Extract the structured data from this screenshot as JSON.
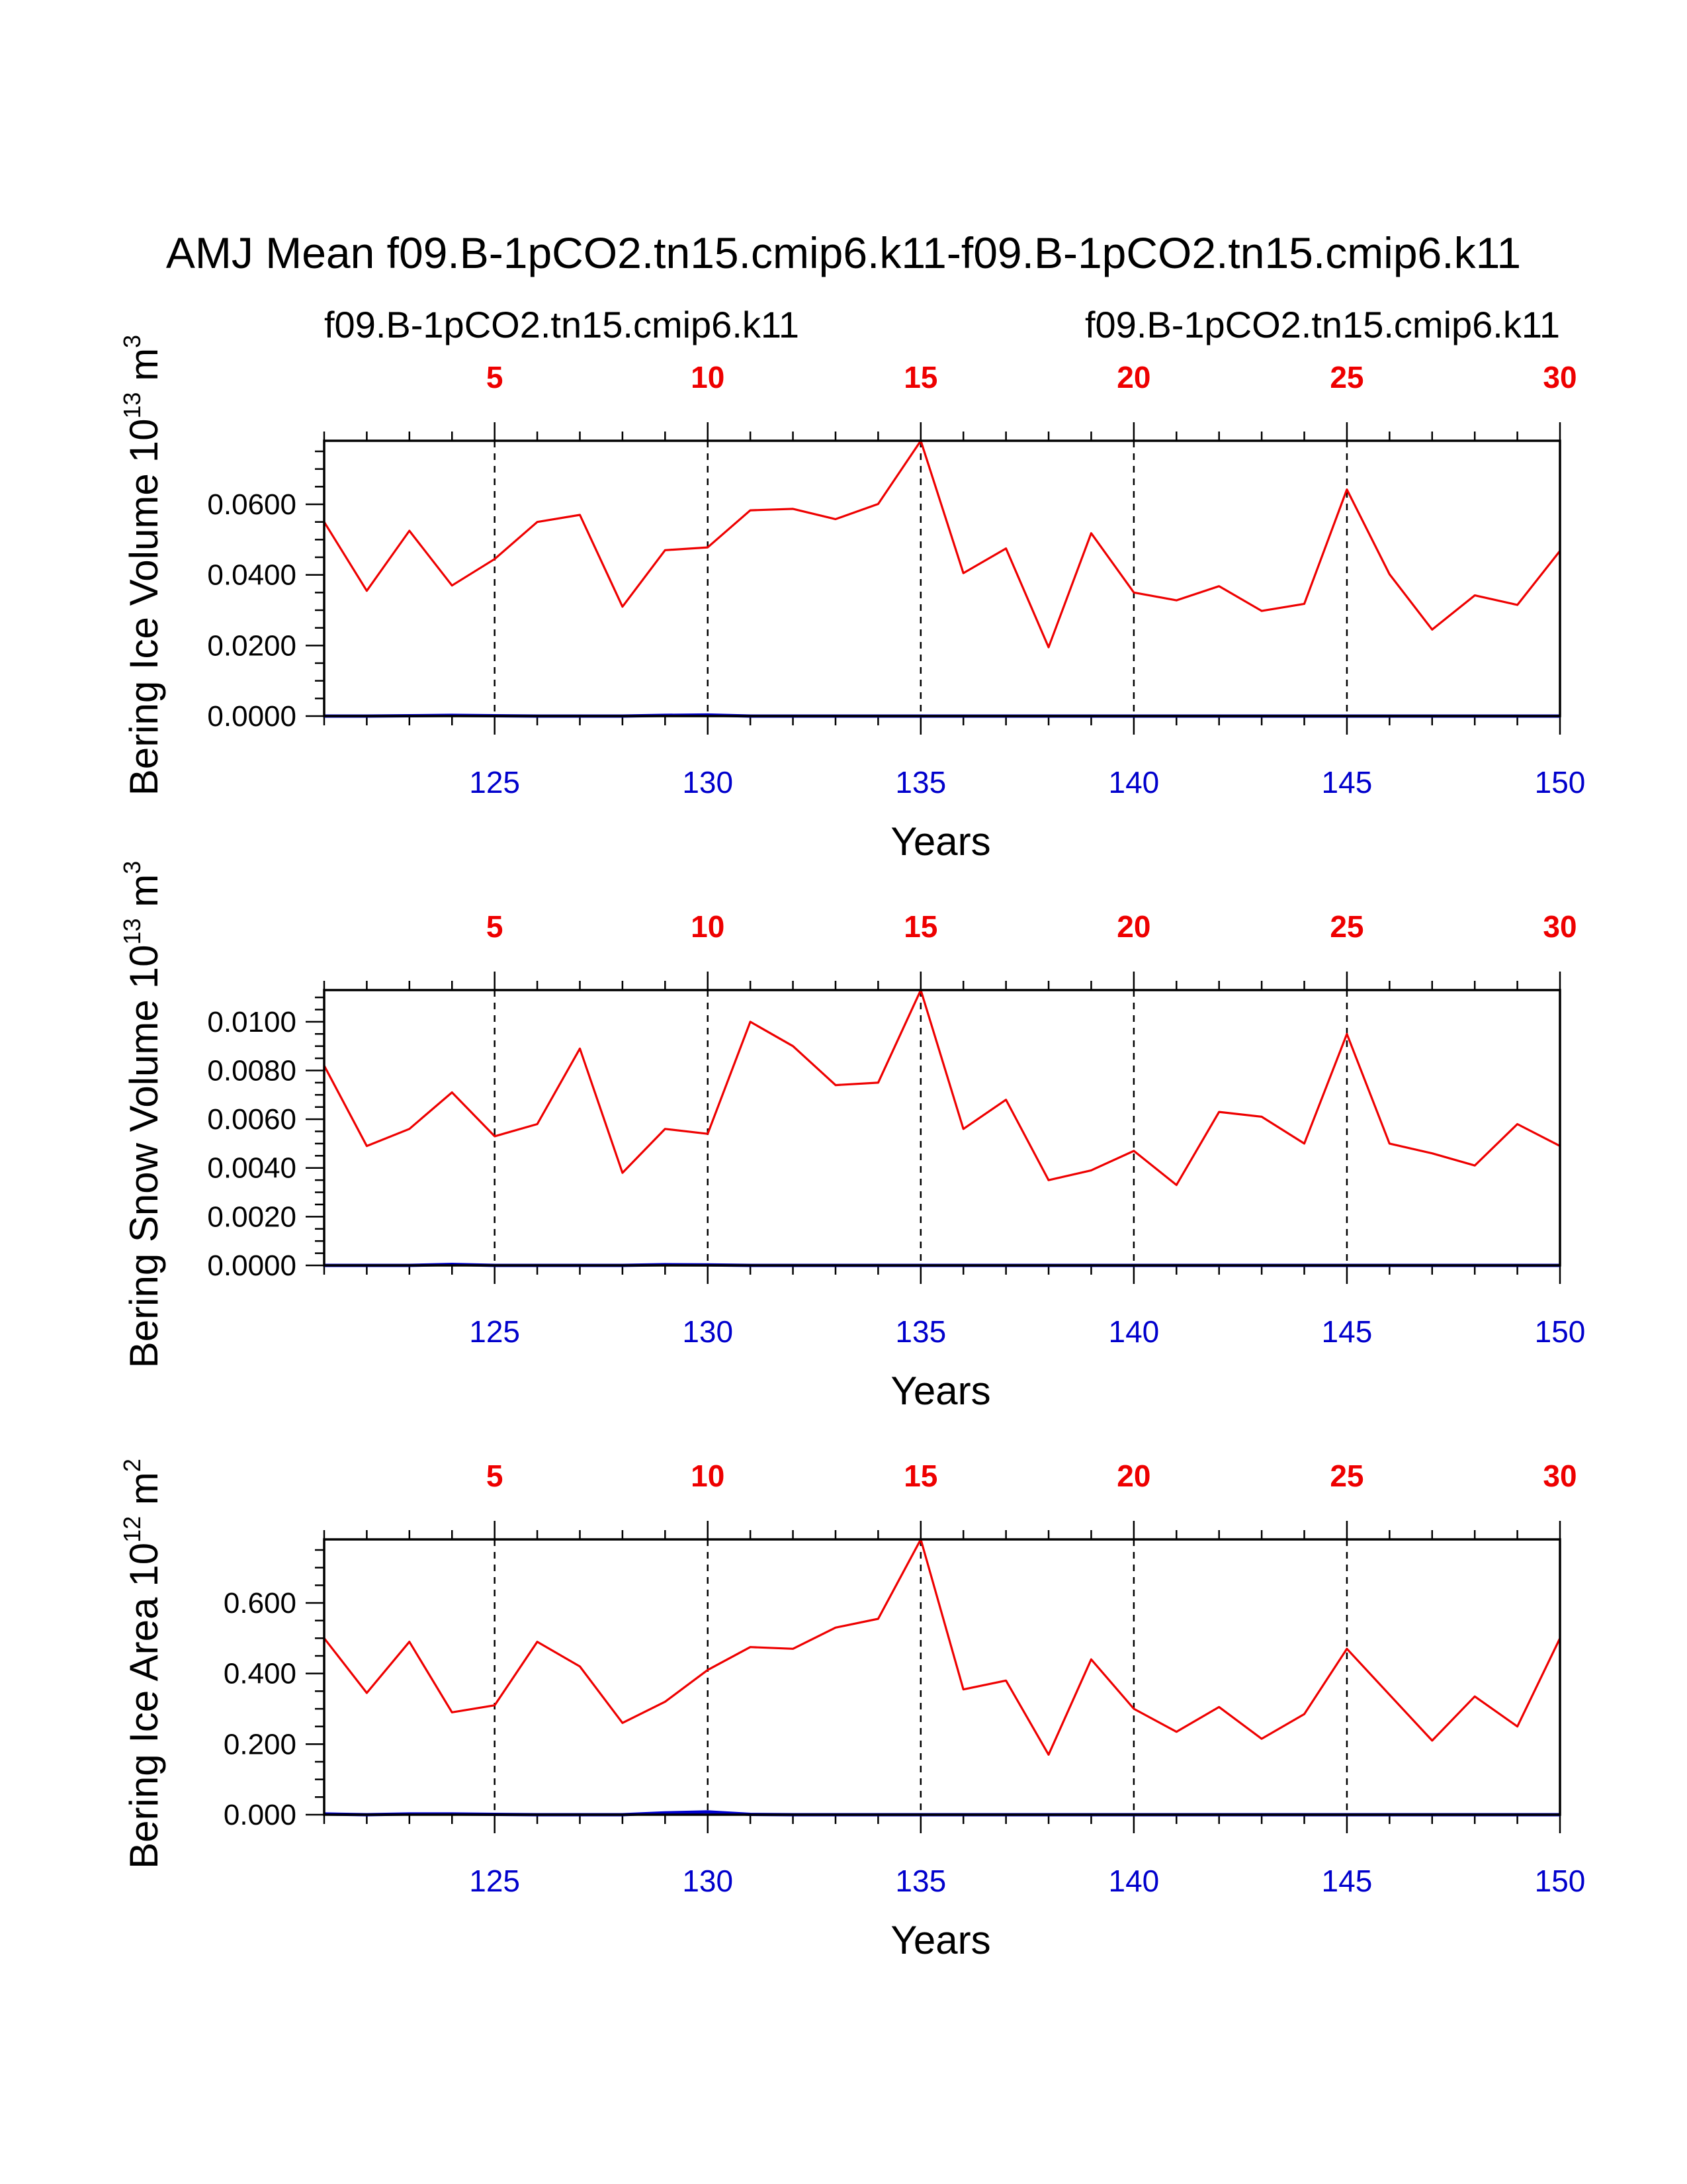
{
  "page_title": "AMJ Mean f09.B-1pCO2.tn15.cmip6.k11-f09.B-1pCO2.tn15.cmip6.k11",
  "legend": {
    "left_case": "f09.B-1pCO2.tn15.cmip6.k11",
    "right_case": "f09.B-1pCO2.tn15.cmip6.k11"
  },
  "colors": {
    "case1": "#ee0000",
    "case2": "#0000cc",
    "axis": "#000000"
  },
  "chart_data": [
    {
      "type": "line",
      "ylabel": "Bering Ice Volume",
      "ylabel_unit": "10",
      "ylabel_unit_exp": "13",
      "ylabel_unit_tail": " m",
      "ylabel_unit_tail_exp": "3",
      "xlabel": "Years",
      "ylim": [
        0,
        0.078
      ],
      "yticks": [
        0.0,
        0.02,
        0.04,
        0.06
      ],
      "ytick_labels": [
        "0.0000",
        "0.0200",
        "0.0400",
        "0.0600"
      ],
      "yminor_step": 0.005,
      "series": [
        {
          "name": "f09.B-1pCO2.tn15.cmip6.k11",
          "color": "#ee0000",
          "x": [
            121,
            122,
            123,
            124,
            125,
            126,
            127,
            128,
            129,
            130,
            131,
            132,
            133,
            134,
            135,
            136,
            137,
            138,
            139,
            140,
            141,
            142,
            143,
            144,
            145,
            146,
            147,
            148,
            149,
            150
          ],
          "values": [
            0.055,
            0.0355,
            0.0525,
            0.037,
            0.0445,
            0.055,
            0.057,
            0.031,
            0.047,
            0.0478,
            0.0583,
            0.0587,
            0.0558,
            0.0601,
            0.078,
            0.0405,
            0.0475,
            0.0195,
            0.0518,
            0.035,
            0.0328,
            0.0368,
            0.0298,
            0.0318,
            0.0642,
            0.0402,
            0.0245,
            0.0342,
            0.0315,
            0.0468
          ]
        },
        {
          "name": "f09.B-1pCO2.tn15.cmip6.k11",
          "color": "#0000cc",
          "x": [
            121,
            122,
            123,
            124,
            125,
            126,
            127,
            128,
            129,
            130,
            131,
            132,
            133,
            134,
            135,
            136,
            137,
            138,
            139,
            140,
            141,
            142,
            143,
            144,
            145,
            146,
            147,
            148,
            149,
            150
          ],
          "values": [
            0.0,
            0.0,
            0.0001,
            0.0002,
            0.0001,
            0.0,
            0.0,
            0.0,
            0.0002,
            0.0003,
            0.0,
            0.0,
            0.0,
            0.0,
            0.0,
            0.0,
            0.0,
            0.0,
            0.0,
            0.0,
            0.0,
            0.0,
            0.0,
            0.0,
            0.0,
            0.0,
            0.0,
            0.0,
            0.0,
            0.0
          ]
        }
      ]
    },
    {
      "type": "line",
      "ylabel": "Bering Snow Volume",
      "ylabel_unit": "10",
      "ylabel_unit_exp": "13",
      "ylabel_unit_tail": " m",
      "ylabel_unit_tail_exp": "3",
      "xlabel": "Years",
      "ylim": [
        0,
        0.0113
      ],
      "yticks": [
        0.0,
        0.002,
        0.004,
        0.006,
        0.008,
        0.01
      ],
      "ytick_labels": [
        "0.0000",
        "0.0020",
        "0.0040",
        "0.0060",
        "0.0080",
        "0.0100"
      ],
      "yminor_step": 0.0005,
      "series": [
        {
          "name": "f09.B-1pCO2.tn15.cmip6.k11",
          "color": "#ee0000",
          "x": [
            121,
            122,
            123,
            124,
            125,
            126,
            127,
            128,
            129,
            130,
            131,
            132,
            133,
            134,
            135,
            136,
            137,
            138,
            139,
            140,
            141,
            142,
            143,
            144,
            145,
            146,
            147,
            148,
            149,
            150
          ],
          "values": [
            0.0082,
            0.0049,
            0.0056,
            0.0071,
            0.0053,
            0.0058,
            0.0089,
            0.0038,
            0.0056,
            0.0054,
            0.01,
            0.009,
            0.0074,
            0.0075,
            0.0113,
            0.0056,
            0.0068,
            0.0035,
            0.0039,
            0.0047,
            0.0033,
            0.0063,
            0.0061,
            0.005,
            0.0095,
            0.005,
            0.0046,
            0.0041,
            0.0058,
            0.0049
          ]
        },
        {
          "name": "f09.B-1pCO2.tn15.cmip6.k11",
          "color": "#0000cc",
          "x": [
            121,
            122,
            123,
            124,
            125,
            126,
            127,
            128,
            129,
            130,
            131,
            132,
            133,
            134,
            135,
            136,
            137,
            138,
            139,
            140,
            141,
            142,
            143,
            144,
            145,
            146,
            147,
            148,
            149,
            150
          ],
          "values": [
            0.0,
            0.0,
            0.0,
            4e-05,
            0.0,
            0.0,
            0.0,
            0.0,
            3e-05,
            2e-05,
            0.0,
            0.0,
            0.0,
            0.0,
            0.0,
            0.0,
            0.0,
            0.0,
            0.0,
            0.0,
            0.0,
            0.0,
            0.0,
            0.0,
            0.0,
            0.0,
            0.0,
            0.0,
            0.0,
            0.0
          ]
        }
      ]
    },
    {
      "type": "line",
      "ylabel": "Bering Ice Area",
      "ylabel_unit": "10",
      "ylabel_unit_exp": "12",
      "ylabel_unit_tail": " m",
      "ylabel_unit_tail_exp": "2",
      "xlabel": "Years",
      "ylim": [
        0,
        0.78
      ],
      "yticks": [
        0.0,
        0.2,
        0.4,
        0.6
      ],
      "ytick_labels": [
        "0.000",
        "0.200",
        "0.400",
        "0.600"
      ],
      "yminor_step": 0.05,
      "series": [
        {
          "name": "f09.B-1pCO2.tn15.cmip6.k11",
          "color": "#ee0000",
          "x": [
            121,
            122,
            123,
            124,
            125,
            126,
            127,
            128,
            129,
            130,
            131,
            132,
            133,
            134,
            135,
            136,
            137,
            138,
            139,
            140,
            141,
            142,
            143,
            144,
            145,
            146,
            147,
            148,
            149,
            150
          ],
          "values": [
            0.5,
            0.345,
            0.49,
            0.29,
            0.31,
            0.49,
            0.42,
            0.26,
            0.32,
            0.41,
            0.475,
            0.47,
            0.53,
            0.555,
            0.78,
            0.355,
            0.38,
            0.17,
            0.44,
            0.3,
            0.235,
            0.305,
            0.215,
            0.285,
            0.47,
            0.34,
            0.21,
            0.335,
            0.25,
            0.5
          ]
        },
        {
          "name": "f09.B-1pCO2.tn15.cmip6.k11",
          "color": "#0000cc",
          "x": [
            121,
            122,
            123,
            124,
            125,
            126,
            127,
            128,
            129,
            130,
            131,
            132,
            133,
            134,
            135,
            136,
            137,
            138,
            139,
            140,
            141,
            142,
            143,
            144,
            145,
            146,
            147,
            148,
            149,
            150
          ],
          "values": [
            0.002,
            0.0,
            0.002,
            0.002,
            0.001,
            0.0,
            0.0,
            0.0,
            0.005,
            0.008,
            0.001,
            0.0,
            0.0,
            0.0,
            0.0,
            0.0,
            0.0,
            0.0,
            0.0,
            0.0,
            0.0,
            0.0,
            0.0,
            0.0,
            0.0,
            0.0,
            0.0,
            0.0,
            0.0,
            0.0
          ]
        }
      ]
    }
  ],
  "x_axis": {
    "min": 121,
    "max": 150,
    "bottom_ticks": [
      125,
      130,
      135,
      140,
      145,
      150
    ],
    "bottom_tick_labels": [
      "125",
      "130",
      "135",
      "140",
      "145",
      "150"
    ],
    "top_ticks": [
      125,
      130,
      135,
      140,
      145,
      150
    ],
    "top_tick_labels": [
      "5",
      "10",
      "15",
      "20",
      "25",
      "30"
    ],
    "gridlines_at": [
      125,
      130,
      135,
      140,
      145
    ],
    "grid": "dashed-vertical"
  }
}
